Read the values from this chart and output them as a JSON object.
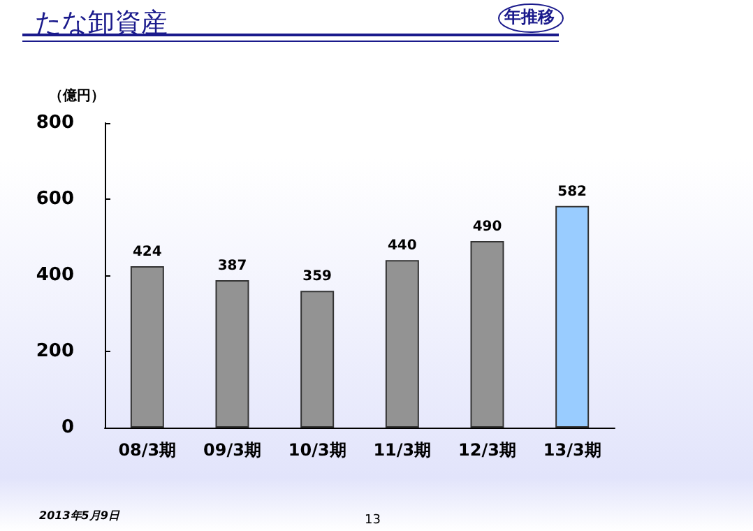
{
  "chart_data": {
    "type": "bar",
    "title": "たな卸資産",
    "ylabel": "（億円）",
    "annotations": [
      "年推移",
      "2013年5月9日",
      "13"
    ],
    "categories": [
      "08/3期",
      "09/3期",
      "10/3期",
      "11/3期",
      "12/3期",
      "13/3期"
    ],
    "values": [
      424,
      387,
      359,
      440,
      490,
      582
    ],
    "colors": [
      "#939393",
      "#939393",
      "#939393",
      "#939393",
      "#939393",
      "#99ccff"
    ],
    "ylim": [
      0,
      800
    ],
    "yticks": [
      0,
      200,
      400,
      600,
      800
    ],
    "data_labels": true
  }
}
